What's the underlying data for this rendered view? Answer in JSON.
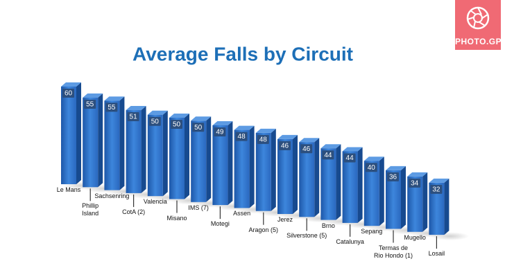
{
  "logo": "PHOTO.GP",
  "chart_data": {
    "type": "bar3d",
    "title": "Average Falls by Circuit",
    "categories": [
      "Le Mans",
      "Phillip\nIsland",
      "Sachsenring",
      "CotA (2)",
      "Valencia",
      "Misano",
      "IMS (7)",
      "Motegi",
      "Assen",
      "Aragon (5)",
      "Jerez",
      "Silverstone (5)",
      "Brno",
      "Catalunya",
      "Sepang",
      "Termas de\nRio Hondo (1)",
      "Mugello",
      "Losail"
    ],
    "values": [
      60,
      55,
      55,
      51,
      50,
      50,
      50,
      49,
      48,
      48,
      46,
      46,
      44,
      44,
      40,
      36,
      34,
      32
    ],
    "color": "#2f6fc4"
  }
}
